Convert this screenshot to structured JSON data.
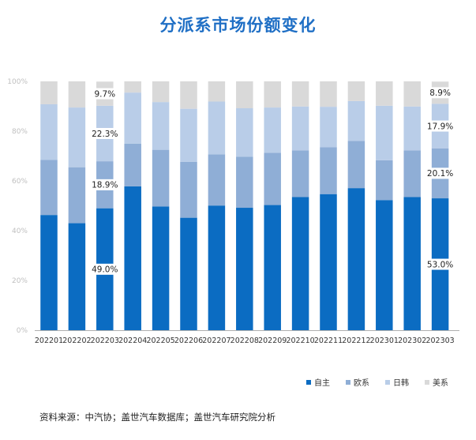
{
  "title": "分派系市场份额变化",
  "source": "资料来源：中汽协；盖世汽车数据库；盖世汽车研究院分析",
  "colors": {
    "title": "#1f6fc5",
    "series": [
      "#0b6cc2",
      "#8faed6",
      "#b9cde8",
      "#d9d9d9"
    ],
    "axis": "#b0b0b0",
    "ticklabel": "#bfbfbf"
  },
  "chart_data": {
    "type": "bar",
    "stacked": true,
    "categories": [
      "202201",
      "202202",
      "202203",
      "202204",
      "202205",
      "202206",
      "202207",
      "202208",
      "202209",
      "202210",
      "202211",
      "202212",
      "202301",
      "202302",
      "202303"
    ],
    "series": [
      {
        "name": "自主",
        "values": [
          46.3,
          43.0,
          49.0,
          57.8,
          49.7,
          45.2,
          50.1,
          49.2,
          50.3,
          53.5,
          54.7,
          57.1,
          52.3,
          53.5,
          53.0
        ]
      },
      {
        "name": "欧系",
        "values": [
          22.2,
          22.5,
          18.9,
          17.2,
          22.8,
          22.5,
          20.6,
          20.5,
          21.0,
          18.8,
          18.8,
          19.0,
          16.0,
          18.8,
          20.1
        ]
      },
      {
        "name": "日韩",
        "values": [
          22.3,
          24.0,
          22.3,
          20.5,
          19.2,
          21.3,
          21.2,
          19.5,
          18.2,
          17.6,
          16.3,
          16.0,
          21.9,
          17.6,
          17.9
        ]
      },
      {
        "name": "美系",
        "values": [
          9.2,
          10.5,
          9.7,
          4.5,
          8.3,
          11.0,
          8.1,
          10.8,
          10.5,
          10.1,
          10.2,
          7.9,
          9.8,
          10.1,
          8.9
        ]
      }
    ],
    "y_ticks": [
      "0%",
      "20%",
      "40%",
      "60%",
      "80%",
      "100%"
    ],
    "ylim": [
      0,
      100
    ],
    "labeled": [
      {
        "category_index": 2,
        "labels": [
          "49.0%",
          "18.9%",
          "22.3%",
          "9.7%"
        ]
      },
      {
        "category_index": 14,
        "labels": [
          "53.0%",
          "20.1%",
          "17.9%",
          "8.9%"
        ]
      }
    ],
    "legend": [
      "自主",
      "欧系",
      "日韩",
      "美系"
    ],
    "legend_position": "bottom-right",
    "grid": false
  }
}
